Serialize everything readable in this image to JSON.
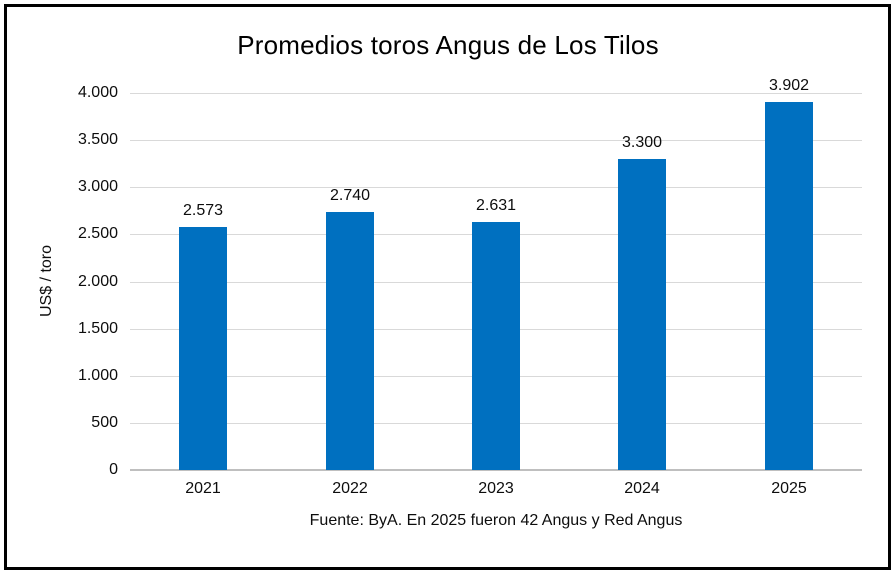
{
  "title": "Promedios toros Angus de Los Tilos",
  "y_axis_title": "US$ / toro",
  "source_note": "Fuente: ByA. En 2025 fueron 42 Angus y Red Angus",
  "chart_data": {
    "type": "bar",
    "title": "Promedios toros Angus de Los Tilos",
    "categories": [
      "2021",
      "2022",
      "2023",
      "2024",
      "2025"
    ],
    "values": [
      2573,
      2740,
      2631,
      3300,
      3902
    ],
    "value_labels": [
      "2.573",
      "2.740",
      "2.631",
      "3.300",
      "3.902"
    ],
    "xlabel": "",
    "ylabel": "US$ / toro",
    "ylim": [
      0,
      4000
    ],
    "ytick_step": 500,
    "ytick_labels": [
      "0",
      "500",
      "1.000",
      "1.500",
      "2.000",
      "2.500",
      "3.000",
      "3.500",
      "4.000"
    ],
    "grid": true,
    "legend": "none",
    "bar_color": "#0070C0",
    "gridline_color": "#d9d9d9",
    "axis_line_color": "#bfbfbf",
    "annotation": "Fuente: ByA. En 2025 fueron 42 Angus y Red Angus"
  }
}
